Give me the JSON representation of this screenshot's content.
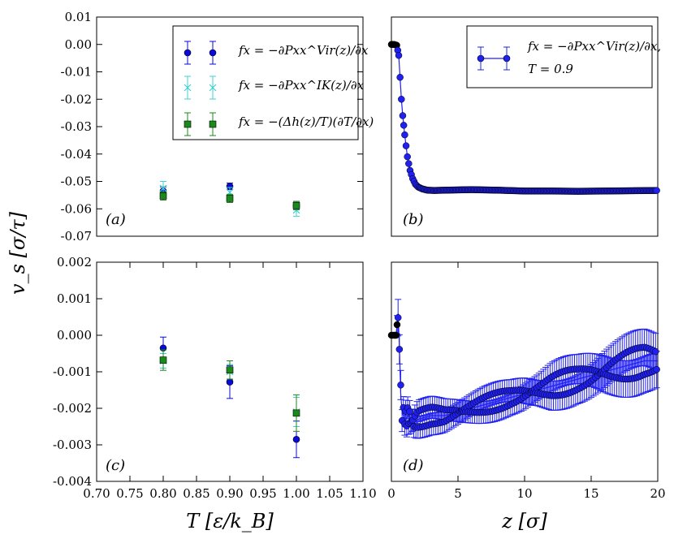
{
  "figure": {
    "ylabel": "v_s [σ/τ]",
    "xlabel_left": "T [ε/k_B]",
    "xlabel_right": "z [σ]"
  },
  "colors": {
    "virial": "#0a0ad8",
    "ik": "#40d0d0",
    "enthalpy": "#1a8a1a",
    "profile": "#2020f0"
  },
  "chart_data": [
    {
      "id": "a",
      "type": "scatter",
      "panel_label": "(a)",
      "xlim": [
        0.7,
        1.1
      ],
      "ylim": [
        -0.07,
        0.01
      ],
      "xticks": [],
      "yticks": [
        "0.01",
        "0.00",
        "-0.01",
        "-0.02",
        "-0.03",
        "-0.04",
        "-0.05",
        "-0.06",
        "-0.07"
      ],
      "ytick_values": [
        0.01,
        0.0,
        -0.01,
        -0.02,
        -0.03,
        -0.04,
        -0.05,
        -0.06,
        -0.07
      ],
      "legend_position": "top-right",
      "series": [
        {
          "name": "f_x = −∂P_xx^Vir(z)/∂x",
          "legend_label": "fx = −∂Pxx^Vir(z)/∂x",
          "marker": "circle",
          "color_key": "virial",
          "x": [
            0.8,
            0.9,
            1.0
          ],
          "y": [
            -0.0535,
            -0.0518,
            -0.0588
          ],
          "err": [
            0.0015,
            0.0012,
            0.0015
          ]
        },
        {
          "name": "f_x = −∂P_xx^IK(z)/∂x",
          "legend_label": "fx = −∂Pxx^IK(z)/∂x",
          "marker": "x",
          "color_key": "ik",
          "x": [
            0.8,
            0.9,
            1.0
          ],
          "y": [
            -0.0525,
            -0.054,
            -0.0605
          ],
          "err": [
            0.0025,
            0.0018,
            0.0022
          ]
        },
        {
          "name": "f_x = −(Δh(z)/T)(∂T/∂x)",
          "legend_label": "fx = −(Δh(z)/T)(∂T/∂x)",
          "marker": "square",
          "color_key": "enthalpy",
          "x": [
            0.8,
            0.9,
            1.0
          ],
          "y": [
            -0.0553,
            -0.0562,
            -0.0588
          ],
          "err": [
            0.0015,
            0.0015,
            0.0015
          ]
        }
      ]
    },
    {
      "id": "b",
      "type": "line",
      "panel_label": "(b)",
      "xlim": [
        0,
        20
      ],
      "ylim": [
        -0.07,
        0.01
      ],
      "xticks": [],
      "yticks": [],
      "legend_position": "top-right",
      "legend_label_line1": "fx = −∂Pxx^Vir(z)/∂x,",
      "legend_label_line2": "T = 0.9",
      "series": [
        {
          "name": "profile",
          "color_key": "profile",
          "x": [
            0,
            0.2,
            0.4,
            0.55,
            0.65,
            0.75,
            0.85,
            1.0,
            1.2,
            1.4,
            1.6,
            1.8,
            2.0,
            2.3,
            2.7,
            3.2,
            4,
            6,
            8,
            10,
            12,
            14,
            16,
            18,
            20
          ],
          "y": [
            0.0,
            0.0,
            -0.0003,
            -0.004,
            -0.012,
            -0.02,
            -0.026,
            -0.033,
            -0.041,
            -0.046,
            -0.049,
            -0.051,
            -0.052,
            -0.0527,
            -0.0532,
            -0.0533,
            -0.0532,
            -0.053,
            -0.0532,
            -0.0535,
            -0.0535,
            -0.0536,
            -0.0535,
            -0.0534,
            -0.0533
          ]
        }
      ]
    },
    {
      "id": "c",
      "type": "scatter",
      "panel_label": "(c)",
      "xlim": [
        0.7,
        1.1
      ],
      "ylim": [
        -0.004,
        0.002
      ],
      "xticks": [
        "0.70",
        "0.75",
        "0.80",
        "0.85",
        "0.90",
        "0.95",
        "1.00",
        "1.05",
        "1.10"
      ],
      "xtick_values": [
        0.7,
        0.75,
        0.8,
        0.85,
        0.9,
        0.95,
        1.0,
        1.05,
        1.1
      ],
      "yticks": [
        "0.002",
        "0.001",
        "0.000",
        "-0.001",
        "-0.002",
        "-0.003",
        "-0.004"
      ],
      "ytick_values": [
        0.002,
        0.001,
        0.0,
        -0.001,
        -0.002,
        -0.003,
        -0.004
      ],
      "series": [
        {
          "name": "virial",
          "marker": "circle",
          "color_key": "virial",
          "x": [
            0.8,
            0.9,
            1.0
          ],
          "y": [
            -0.00035,
            -0.00128,
            -0.00285
          ],
          "err": [
            0.0003,
            0.00045,
            0.0005
          ]
        },
        {
          "name": "ik",
          "marker": "x",
          "color_key": "ik",
          "x": [
            0.8,
            0.9,
            1.0
          ],
          "y": [
            -0.0007,
            -0.001,
            -0.0021
          ],
          "err": [
            0.0002,
            0.0002,
            0.0004
          ]
        },
        {
          "name": "enthalpy",
          "marker": "square",
          "color_key": "enthalpy",
          "x": [
            0.8,
            0.9,
            1.0
          ],
          "y": [
            -0.00068,
            -0.00095,
            -0.00213
          ],
          "err": [
            0.00028,
            0.00025,
            0.0005
          ]
        }
      ]
    },
    {
      "id": "d",
      "type": "line",
      "panel_label": "(d)",
      "xlim": [
        0,
        20
      ],
      "ylim": [
        -0.004,
        0.002
      ],
      "xticks": [
        "0",
        "5",
        "10",
        "15",
        "20"
      ],
      "xtick_values": [
        0,
        5,
        10,
        15,
        20
      ],
      "yticks": [],
      "series": [
        {
          "name": "profile",
          "color_key": "profile",
          "x": [
            0,
            0.2,
            0.35,
            0.5,
            0.6,
            0.7,
            0.8,
            1.0,
            1.3,
            1.6,
            2.0,
            3,
            4,
            5,
            6,
            7,
            8,
            9,
            10,
            11,
            12,
            13,
            14,
            15,
            16,
            17,
            18,
            19,
            20
          ],
          "y": [
            0.0,
            0.0,
            0.0,
            0.0006,
            -0.0003,
            -0.0016,
            -0.0021,
            -0.0023,
            -0.0022,
            -0.0024,
            -0.0023,
            -0.0022,
            -0.0022,
            -0.0021,
            -0.002,
            -0.0019,
            -0.0018,
            -0.0017,
            -0.0016,
            -0.0015,
            -0.0014,
            -0.0013,
            -0.0012,
            -0.0011,
            -0.001,
            -0.0009,
            -0.0008,
            -0.0007,
            -0.0007
          ],
          "err": [
            0.0,
            0.0,
            0.0,
            0.0005,
            0.0004,
            0.0004,
            0.0003,
            0.0003,
            0.0003,
            0.0003,
            0.0003,
            0.0003,
            0.0003,
            0.0003,
            0.0003,
            0.0003,
            0.0003,
            0.0003,
            0.00035,
            0.00035,
            0.0004,
            0.0004,
            0.0004,
            0.00045,
            0.0005,
            0.0005,
            0.0005,
            0.0005,
            0.0005
          ]
        }
      ]
    }
  ]
}
